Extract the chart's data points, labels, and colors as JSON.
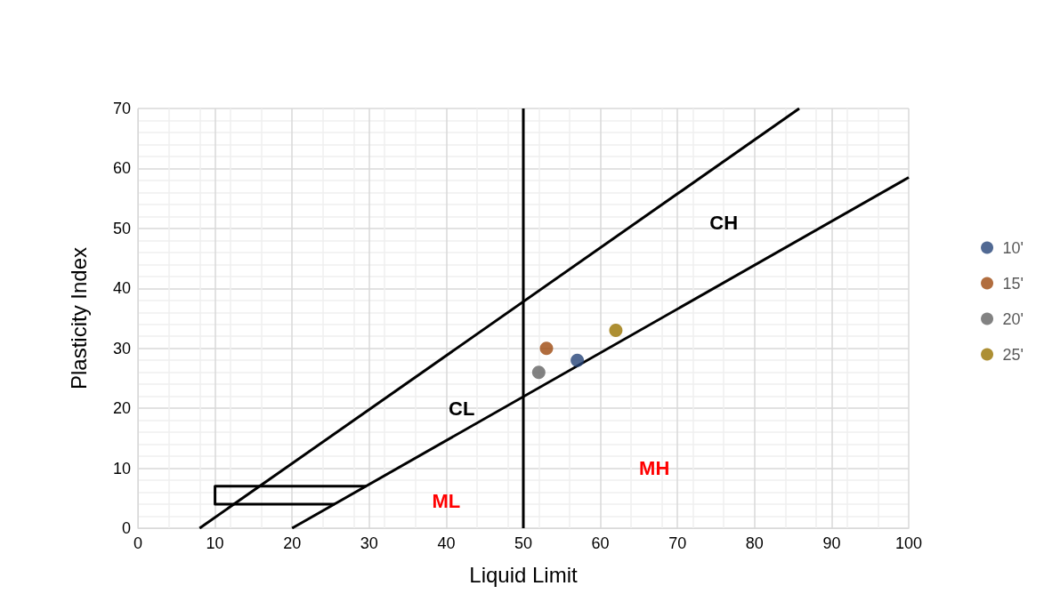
{
  "chart_data": {
    "type": "scatter",
    "xlabel": "Liquid Limit",
    "ylabel": "Plasticity Index",
    "xlim": [
      0,
      100
    ],
    "xticks": [
      0,
      10,
      20,
      30,
      40,
      50,
      60,
      70,
      80,
      90,
      100
    ],
    "ylim": [
      0,
      70
    ],
    "yticks": [
      0,
      10,
      20,
      30,
      40,
      50,
      60,
      70
    ],
    "grid": true,
    "legend": "right",
    "marker": "circle",
    "series": [
      {
        "type": "line",
        "color": "#000000",
        "marker": "none",
        "x": [
          8,
          85.8
        ],
        "values": [
          0,
          70
        ]
      },
      {
        "type": "line",
        "color": "#000000",
        "marker": "none",
        "x": [
          20,
          100
        ],
        "values": [
          0,
          58.5
        ]
      },
      {
        "type": "line",
        "color": "#000000",
        "marker": "none",
        "x": [
          50,
          50
        ],
        "values": [
          0,
          70
        ]
      },
      {
        "type": "line",
        "color": "#000000",
        "marker": "none",
        "x": [
          25.5,
          10,
          10,
          29.6
        ],
        "values": [
          4,
          4,
          7,
          7
        ]
      },
      {
        "name": "10'",
        "color": "#264478",
        "x": [
          57
        ],
        "values": [
          28
        ]
      },
      {
        "name": "15'",
        "color": "#9e480e",
        "x": [
          53
        ],
        "values": [
          30
        ]
      },
      {
        "name": "20'",
        "color": "#636363",
        "x": [
          52
        ],
        "values": [
          26
        ]
      },
      {
        "name": "25'",
        "color": "#997300",
        "x": [
          62
        ],
        "values": [
          33
        ]
      }
    ],
    "annotations": [
      "CH",
      "CL",
      "ML",
      "MH"
    ]
  }
}
